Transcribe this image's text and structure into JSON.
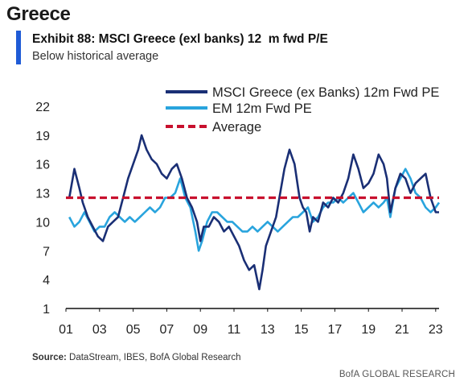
{
  "header": {
    "section_title": "Greece",
    "exhibit_title": "Exhibit 88: MSCI Greece (exl banks) 12  m fwd P/E",
    "subtitle": "Below historical average",
    "accent_color": "#1f5bd6"
  },
  "footer": {
    "source_label": "Source:",
    "source_text": " DataStream, IBES, BofA Global Research",
    "brand": "BofA GLOBAL RESEARCH"
  },
  "chart_data": {
    "type": "line",
    "title": "",
    "xlabel": "",
    "ylabel": "",
    "xlim": [
      2001.0,
      2023.2
    ],
    "ylim": [
      1,
      22
    ],
    "x_ticks": [
      1,
      3,
      5,
      7,
      9,
      11,
      13,
      15,
      17,
      19,
      21,
      23
    ],
    "x_tick_labels": [
      "01",
      "03",
      "05",
      "07",
      "09",
      "11",
      "13",
      "15",
      "17",
      "19",
      "21",
      "23"
    ],
    "y_ticks": [
      1,
      4,
      7,
      10,
      13,
      16,
      19,
      22
    ],
    "y_tick_labels": [
      "1",
      "4",
      "7",
      "10",
      "13",
      "16",
      "19",
      "22"
    ],
    "grid": false,
    "legend_position": "top",
    "series": [
      {
        "name": "MSCI Greece (ex Banks) 12m Fwd PE",
        "color": "#1a2f75",
        "style": "solid",
        "points": [
          [
            2001.2,
            12.5
          ],
          [
            2001.5,
            15.5
          ],
          [
            2001.8,
            13.5
          ],
          [
            2002.0,
            12.0
          ],
          [
            2002.3,
            10.5
          ],
          [
            2002.6,
            9.5
          ],
          [
            2002.9,
            8.5
          ],
          [
            2003.2,
            8.0
          ],
          [
            2003.5,
            9.5
          ],
          [
            2003.8,
            10.0
          ],
          [
            2004.1,
            10.5
          ],
          [
            2004.4,
            12.5
          ],
          [
            2004.7,
            14.5
          ],
          [
            2005.0,
            16.0
          ],
          [
            2005.3,
            17.5
          ],
          [
            2005.5,
            19.0
          ],
          [
            2005.8,
            17.5
          ],
          [
            2006.1,
            16.5
          ],
          [
            2006.4,
            16.0
          ],
          [
            2006.7,
            15.0
          ],
          [
            2007.0,
            14.5
          ],
          [
            2007.3,
            15.5
          ],
          [
            2007.6,
            16.0
          ],
          [
            2007.9,
            14.5
          ],
          [
            2008.2,
            12.5
          ],
          [
            2008.5,
            11.5
          ],
          [
            2008.8,
            10.0
          ],
          [
            2009.0,
            8.0
          ],
          [
            2009.2,
            9.5
          ],
          [
            2009.5,
            9.5
          ],
          [
            2009.8,
            10.5
          ],
          [
            2010.1,
            10.0
          ],
          [
            2010.4,
            9.0
          ],
          [
            2010.7,
            9.5
          ],
          [
            2011.0,
            8.5
          ],
          [
            2011.3,
            7.5
          ],
          [
            2011.6,
            6.0
          ],
          [
            2011.9,
            5.0
          ],
          [
            2012.2,
            5.5
          ],
          [
            2012.5,
            3.0
          ],
          [
            2012.7,
            5.0
          ],
          [
            2012.9,
            7.5
          ],
          [
            2013.2,
            9.0
          ],
          [
            2013.5,
            10.5
          ],
          [
            2013.8,
            13.5
          ],
          [
            2014.0,
            15.5
          ],
          [
            2014.3,
            17.5
          ],
          [
            2014.6,
            16.0
          ],
          [
            2014.9,
            12.5
          ],
          [
            2015.1,
            11.5
          ],
          [
            2015.3,
            11.0
          ],
          [
            2015.5,
            9.0
          ],
          [
            2015.7,
            10.5
          ],
          [
            2016.0,
            10.0
          ],
          [
            2016.3,
            12.0
          ],
          [
            2016.6,
            11.5
          ],
          [
            2016.9,
            12.5
          ],
          [
            2017.2,
            12.0
          ],
          [
            2017.5,
            13.0
          ],
          [
            2017.8,
            14.5
          ],
          [
            2018.1,
            17.0
          ],
          [
            2018.4,
            15.5
          ],
          [
            2018.7,
            13.5
          ],
          [
            2019.0,
            14.0
          ],
          [
            2019.3,
            15.0
          ],
          [
            2019.6,
            17.0
          ],
          [
            2019.9,
            16.0
          ],
          [
            2020.1,
            14.5
          ],
          [
            2020.3,
            11.0
          ],
          [
            2020.6,
            13.5
          ],
          [
            2020.9,
            15.0
          ],
          [
            2021.2,
            14.5
          ],
          [
            2021.5,
            13.0
          ],
          [
            2021.8,
            14.0
          ],
          [
            2022.1,
            14.5
          ],
          [
            2022.4,
            15.0
          ],
          [
            2022.7,
            12.5
          ],
          [
            2023.0,
            11.0
          ],
          [
            2023.2,
            11.0
          ]
        ]
      },
      {
        "name": "EM 12m Fwd PE",
        "color": "#29a4dd",
        "style": "solid",
        "points": [
          [
            2001.2,
            10.5
          ],
          [
            2001.5,
            9.5
          ],
          [
            2001.8,
            10.0
          ],
          [
            2002.1,
            11.0
          ],
          [
            2002.4,
            10.0
          ],
          [
            2002.7,
            9.0
          ],
          [
            2003.0,
            9.5
          ],
          [
            2003.3,
            9.5
          ],
          [
            2003.6,
            10.5
          ],
          [
            2003.9,
            11.0
          ],
          [
            2004.2,
            10.5
          ],
          [
            2004.5,
            10.0
          ],
          [
            2004.8,
            10.5
          ],
          [
            2005.1,
            10.0
          ],
          [
            2005.4,
            10.5
          ],
          [
            2005.7,
            11.0
          ],
          [
            2006.0,
            11.5
          ],
          [
            2006.3,
            11.0
          ],
          [
            2006.6,
            11.5
          ],
          [
            2006.9,
            12.5
          ],
          [
            2007.2,
            12.5
          ],
          [
            2007.5,
            13.0
          ],
          [
            2007.8,
            14.5
          ],
          [
            2008.1,
            12.5
          ],
          [
            2008.4,
            11.5
          ],
          [
            2008.7,
            9.0
          ],
          [
            2008.9,
            7.0
          ],
          [
            2009.1,
            8.0
          ],
          [
            2009.4,
            10.0
          ],
          [
            2009.7,
            11.0
          ],
          [
            2010.0,
            11.0
          ],
          [
            2010.3,
            10.5
          ],
          [
            2010.6,
            10.0
          ],
          [
            2010.9,
            10.0
          ],
          [
            2011.2,
            9.5
          ],
          [
            2011.5,
            9.0
          ],
          [
            2011.8,
            9.0
          ],
          [
            2012.1,
            9.5
          ],
          [
            2012.4,
            9.0
          ],
          [
            2012.7,
            9.5
          ],
          [
            2013.0,
            10.0
          ],
          [
            2013.3,
            9.5
          ],
          [
            2013.6,
            9.0
          ],
          [
            2013.9,
            9.5
          ],
          [
            2014.2,
            10.0
          ],
          [
            2014.5,
            10.5
          ],
          [
            2014.8,
            10.5
          ],
          [
            2015.1,
            11.0
          ],
          [
            2015.4,
            11.5
          ],
          [
            2015.7,
            10.0
          ],
          [
            2016.0,
            10.5
          ],
          [
            2016.3,
            11.5
          ],
          [
            2016.6,
            12.0
          ],
          [
            2016.9,
            12.0
          ],
          [
            2017.2,
            12.5
          ],
          [
            2017.5,
            12.0
          ],
          [
            2017.8,
            12.5
          ],
          [
            2018.1,
            13.0
          ],
          [
            2018.4,
            12.0
          ],
          [
            2018.7,
            11.0
          ],
          [
            2019.0,
            11.5
          ],
          [
            2019.3,
            12.0
          ],
          [
            2019.6,
            11.5
          ],
          [
            2019.9,
            12.0
          ],
          [
            2020.1,
            12.5
          ],
          [
            2020.3,
            10.5
          ],
          [
            2020.6,
            13.5
          ],
          [
            2020.9,
            14.5
          ],
          [
            2021.2,
            15.5
          ],
          [
            2021.5,
            14.5
          ],
          [
            2021.8,
            13.0
          ],
          [
            2022.1,
            12.5
          ],
          [
            2022.4,
            11.5
          ],
          [
            2022.7,
            11.0
          ],
          [
            2023.0,
            11.5
          ],
          [
            2023.2,
            12.0
          ]
        ]
      },
      {
        "name": "Average",
        "color": "#c8102e",
        "style": "dashed",
        "points": [
          [
            2001.0,
            12.5
          ],
          [
            2023.2,
            12.5
          ]
        ]
      }
    ]
  }
}
